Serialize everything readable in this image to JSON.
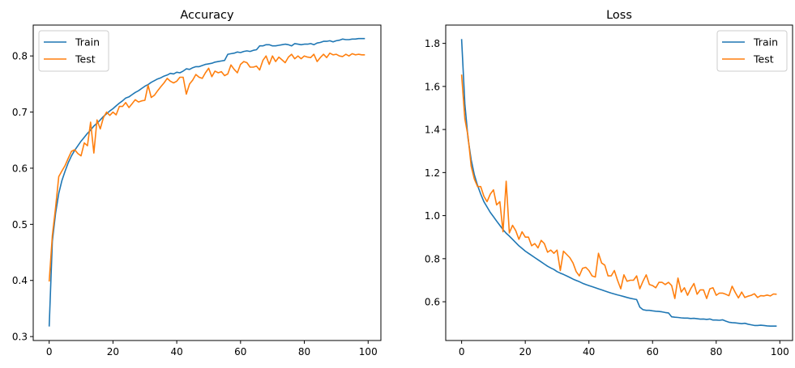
{
  "colors": {
    "Train": "#1f77b4",
    "Test": "#ff7f0e"
  },
  "chart_data": [
    {
      "type": "line",
      "title": "Accuracy",
      "xlabel": "",
      "ylabel": "",
      "xlim": [
        -5,
        104
      ],
      "ylim": [
        0.293,
        0.855
      ],
      "xticks": [
        0,
        20,
        40,
        60,
        80,
        100
      ],
      "yticks": [
        0.3,
        0.4,
        0.5,
        0.6,
        0.7,
        0.8
      ],
      "ytick_labels": [
        "0.3",
        "0.4",
        "0.5",
        "0.6",
        "0.7",
        "0.8"
      ],
      "legend": "top-left",
      "grid": false,
      "series": [
        {
          "name": "Train",
          "values": [
            0.318,
            0.47,
            0.52,
            0.555,
            0.578,
            0.595,
            0.61,
            0.622,
            0.632,
            0.64,
            0.648,
            0.655,
            0.662,
            0.668,
            0.675,
            0.68,
            0.686,
            0.692,
            0.697,
            0.702,
            0.706,
            0.711,
            0.716,
            0.72,
            0.725,
            0.727,
            0.731,
            0.735,
            0.738,
            0.742,
            0.746,
            0.749,
            0.753,
            0.756,
            0.759,
            0.761,
            0.764,
            0.766,
            0.769,
            0.768,
            0.771,
            0.77,
            0.773,
            0.777,
            0.776,
            0.779,
            0.781,
            0.781,
            0.783,
            0.785,
            0.786,
            0.787,
            0.789,
            0.79,
            0.791,
            0.792,
            0.803,
            0.804,
            0.805,
            0.807,
            0.806,
            0.808,
            0.809,
            0.808,
            0.81,
            0.811,
            0.818,
            0.818,
            0.82,
            0.82,
            0.818,
            0.818,
            0.819,
            0.82,
            0.821,
            0.82,
            0.818,
            0.822,
            0.821,
            0.82,
            0.821,
            0.821,
            0.822,
            0.82,
            0.823,
            0.824,
            0.826,
            0.826,
            0.827,
            0.825,
            0.827,
            0.828,
            0.83,
            0.829,
            0.829,
            0.83,
            0.83,
            0.831,
            0.831,
            0.831
          ]
        },
        {
          "name": "Test",
          "values": [
            0.398,
            0.48,
            0.53,
            0.585,
            0.595,
            0.605,
            0.618,
            0.63,
            0.633,
            0.626,
            0.622,
            0.645,
            0.64,
            0.682,
            0.627,
            0.686,
            0.67,
            0.69,
            0.7,
            0.694,
            0.7,
            0.695,
            0.71,
            0.71,
            0.717,
            0.708,
            0.715,
            0.722,
            0.718,
            0.72,
            0.721,
            0.748,
            0.726,
            0.73,
            0.738,
            0.745,
            0.752,
            0.76,
            0.755,
            0.752,
            0.755,
            0.762,
            0.762,
            0.732,
            0.75,
            0.757,
            0.767,
            0.762,
            0.76,
            0.77,
            0.778,
            0.763,
            0.773,
            0.77,
            0.772,
            0.765,
            0.768,
            0.784,
            0.776,
            0.77,
            0.785,
            0.79,
            0.788,
            0.78,
            0.78,
            0.782,
            0.775,
            0.792,
            0.8,
            0.785,
            0.8,
            0.79,
            0.798,
            0.793,
            0.788,
            0.798,
            0.803,
            0.795,
            0.8,
            0.795,
            0.8,
            0.798,
            0.797,
            0.803,
            0.79,
            0.797,
            0.803,
            0.797,
            0.805,
            0.802,
            0.803,
            0.8,
            0.799,
            0.803,
            0.8,
            0.804,
            0.802,
            0.803,
            0.802,
            0.802
          ]
        }
      ]
    },
    {
      "type": "line",
      "title": "Loss",
      "xlabel": "",
      "ylabel": "",
      "xlim": [
        -5,
        104
      ],
      "ylim": [
        0.42,
        1.885
      ],
      "xticks": [
        0,
        20,
        40,
        60,
        80,
        100
      ],
      "yticks": [
        0.6,
        0.8,
        1.0,
        1.2,
        1.4,
        1.6,
        1.8
      ],
      "ytick_labels": [
        "0.6",
        "0.8",
        "1.0",
        "1.2",
        "1.4",
        "1.6",
        "1.8"
      ],
      "legend": "top-right",
      "grid": false,
      "series": [
        {
          "name": "Train",
          "values": [
            1.82,
            1.52,
            1.36,
            1.26,
            1.19,
            1.14,
            1.1,
            1.065,
            1.04,
            1.015,
            0.995,
            0.975,
            0.955,
            0.935,
            0.918,
            0.905,
            0.89,
            0.875,
            0.86,
            0.848,
            0.835,
            0.825,
            0.815,
            0.805,
            0.795,
            0.785,
            0.775,
            0.765,
            0.757,
            0.75,
            0.74,
            0.733,
            0.727,
            0.72,
            0.713,
            0.705,
            0.699,
            0.693,
            0.686,
            0.68,
            0.675,
            0.67,
            0.665,
            0.66,
            0.655,
            0.65,
            0.645,
            0.64,
            0.636,
            0.632,
            0.628,
            0.624,
            0.62,
            0.616,
            0.613,
            0.61,
            0.575,
            0.563,
            0.56,
            0.56,
            0.558,
            0.556,
            0.555,
            0.553,
            0.55,
            0.548,
            0.53,
            0.528,
            0.527,
            0.525,
            0.524,
            0.524,
            0.522,
            0.523,
            0.521,
            0.519,
            0.52,
            0.518,
            0.52,
            0.515,
            0.515,
            0.514,
            0.516,
            0.51,
            0.505,
            0.503,
            0.502,
            0.5,
            0.498,
            0.5,
            0.496,
            0.493,
            0.49,
            0.49,
            0.491,
            0.49,
            0.488,
            0.487,
            0.487,
            0.487
          ]
        },
        {
          "name": "Test",
          "values": [
            1.655,
            1.45,
            1.37,
            1.23,
            1.17,
            1.135,
            1.135,
            1.09,
            1.065,
            1.1,
            1.12,
            1.05,
            1.065,
            0.925,
            1.16,
            0.92,
            0.955,
            0.93,
            0.89,
            0.925,
            0.9,
            0.9,
            0.86,
            0.87,
            0.85,
            0.885,
            0.87,
            0.83,
            0.84,
            0.825,
            0.84,
            0.745,
            0.835,
            0.82,
            0.805,
            0.78,
            0.74,
            0.72,
            0.755,
            0.76,
            0.745,
            0.72,
            0.715,
            0.825,
            0.78,
            0.77,
            0.72,
            0.72,
            0.745,
            0.7,
            0.66,
            0.725,
            0.695,
            0.7,
            0.7,
            0.72,
            0.66,
            0.695,
            0.725,
            0.68,
            0.675,
            0.665,
            0.69,
            0.69,
            0.68,
            0.69,
            0.675,
            0.615,
            0.71,
            0.645,
            0.665,
            0.63,
            0.66,
            0.685,
            0.635,
            0.655,
            0.655,
            0.615,
            0.66,
            0.665,
            0.63,
            0.64,
            0.64,
            0.635,
            0.628,
            0.672,
            0.643,
            0.618,
            0.645,
            0.62,
            0.626,
            0.63,
            0.637,
            0.62,
            0.628,
            0.627,
            0.631,
            0.627,
            0.636,
            0.635
          ]
        }
      ]
    }
  ]
}
